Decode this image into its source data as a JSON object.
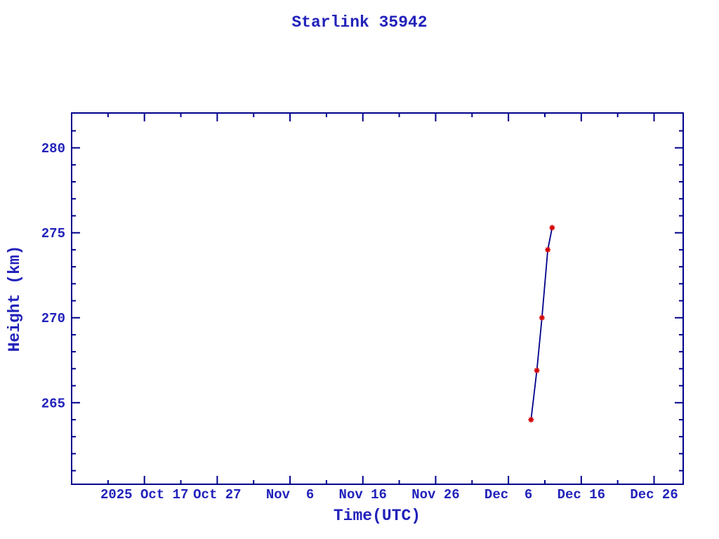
{
  "colors": {
    "background": "#ffffff",
    "axis": "#00008b",
    "text": "#2222bb",
    "line": "#00008b",
    "marker": "#d40000"
  },
  "chart_data": {
    "type": "line",
    "title": "Starlink 35942",
    "xlabel": "Time(UTC)",
    "ylabel": "Height (km)",
    "grid": false,
    "legend": false,
    "x_axis": {
      "unit": "days, day 0 = axis left edge (approx 2025 Oct 7)",
      "range": [
        0,
        84
      ],
      "minor_step": 5,
      "major_ticks": [
        {
          "day": 10,
          "label": "2025 Oct 17"
        },
        {
          "day": 20,
          "label": "Oct 27"
        },
        {
          "day": 30,
          "label": "Nov  6"
        },
        {
          "day": 40,
          "label": "Nov 16"
        },
        {
          "day": 50,
          "label": "Nov 26"
        },
        {
          "day": 60,
          "label": "Dec  6"
        },
        {
          "day": 70,
          "label": "Dec 16"
        },
        {
          "day": 80,
          "label": "Dec 26"
        }
      ]
    },
    "y_axis": {
      "range": [
        260.2,
        282.05
      ],
      "minor_step": 1,
      "major_ticks": [
        265,
        270,
        275,
        280
      ]
    },
    "series": [
      {
        "name": "height",
        "marker": "asterisk",
        "points": [
          {
            "day": 63.1,
            "approx_date": "Dec 9.1",
            "height_km": 264.0
          },
          {
            "day": 63.9,
            "approx_date": "Dec 9.9",
            "height_km": 266.9
          },
          {
            "day": 64.6,
            "approx_date": "Dec 10.6",
            "height_km": 270.0
          },
          {
            "day": 65.4,
            "approx_date": "Dec 11.4",
            "height_km": 274.0
          },
          {
            "day": 66.0,
            "approx_date": "Dec 12.0",
            "height_km": 275.3
          }
        ]
      }
    ]
  }
}
